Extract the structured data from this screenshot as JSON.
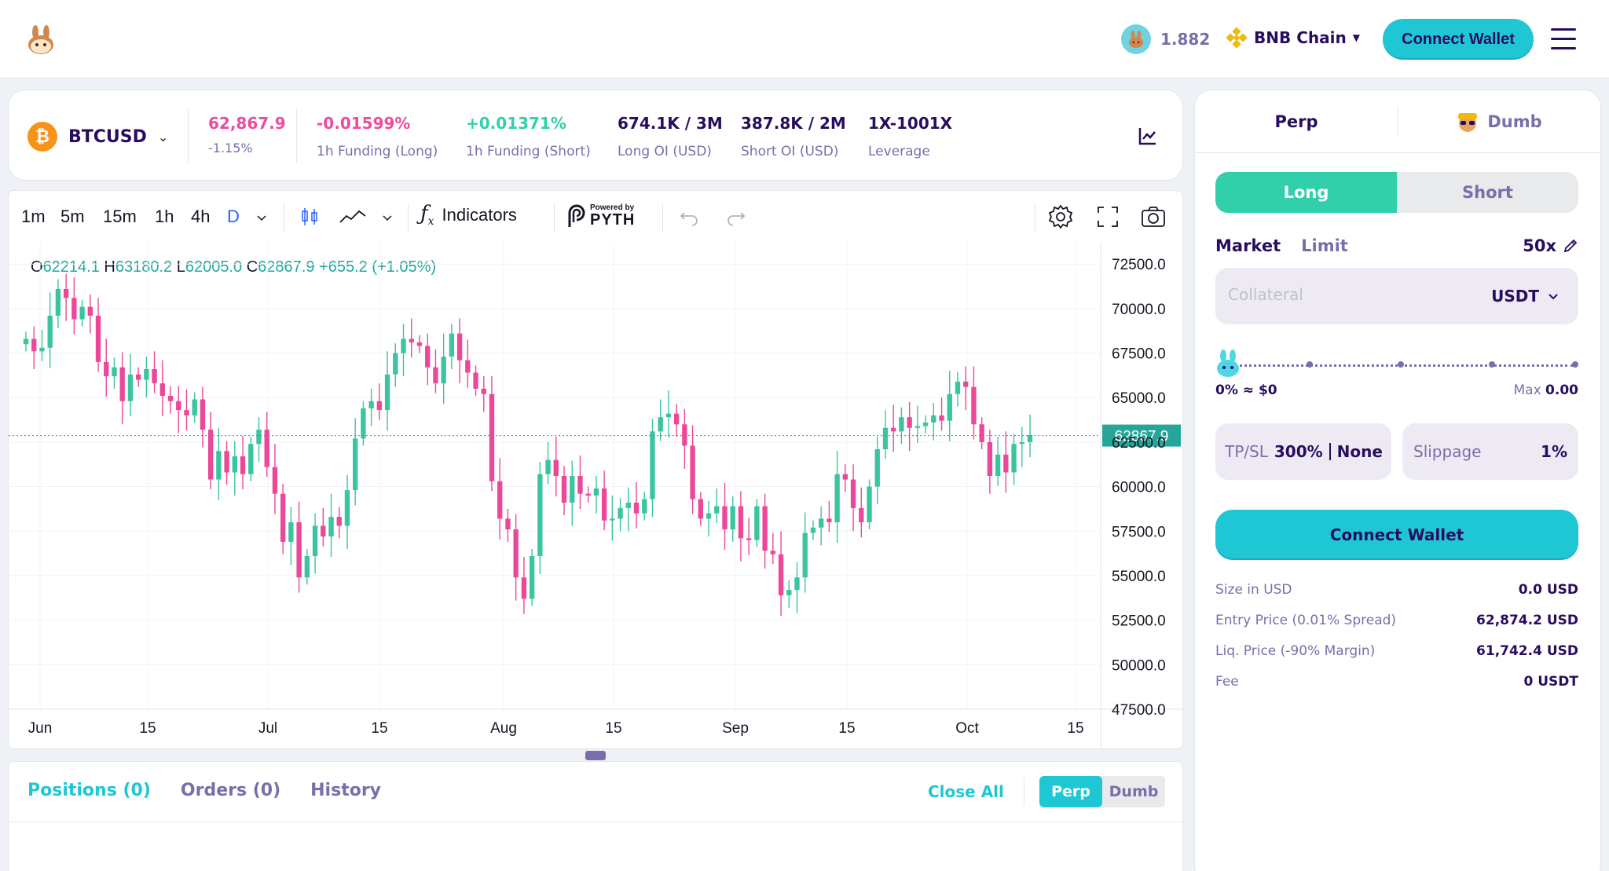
{
  "header": {
    "token_price": "1.882",
    "chain_name": "BNB Chain",
    "connect_label": "Connect Wallet"
  },
  "market": {
    "pair": "BTCUSD",
    "price": "62,867.9",
    "change": "-1.15%",
    "funding_long": "-0.01599%",
    "funding_long_label": "1h Funding (Long)",
    "funding_short": "+0.01371%",
    "funding_short_label": "1h Funding (Short)",
    "long_oi": "674.1K / 3M",
    "long_oi_label": "Long OI (USD)",
    "short_oi": "387.8K / 2M",
    "short_oi_label": "Short OI (USD)",
    "leverage": "1X-1001X",
    "leverage_label": "Leverage"
  },
  "toolbar": {
    "timeframes": [
      "1m",
      "5m",
      "15m",
      "1h",
      "4h",
      "D"
    ],
    "active_timeframe": "D",
    "indicators_label": "Indicators",
    "powered_by": "Powered by",
    "pyth": "PYTH"
  },
  "ohlc": {
    "o_label": "O",
    "o": "62214.1",
    "h_label": "H",
    "h": "63180.2",
    "l_label": "L",
    "l": "62005.0",
    "c_label": "C",
    "c": "62867.9",
    "chg": "+655.2 (+1.05%)"
  },
  "chart_data": {
    "type": "candlestick",
    "symbol": "BTCUSD",
    "interval": "D",
    "current_price": 62867.9,
    "ylim": [
      47500,
      73700
    ],
    "y_ticks": [
      "72500.0",
      "70000.0",
      "67500.0",
      "65000.0",
      "62500.0",
      "60000.0",
      "57500.0",
      "55000.0",
      "52500.0",
      "50000.0",
      "47500.0"
    ],
    "x_ticks": [
      "Jun",
      "15",
      "Jul",
      "15",
      "Aug",
      "15",
      "Sep",
      "15",
      "Oct",
      "15"
    ],
    "colors": {
      "up": "#26a69a",
      "down": "#ef5350",
      "up_bright": "#3bc4a0",
      "down_bright": "#ec4899"
    },
    "closes": [
      68300,
      67600,
      67800,
      69600,
      71100,
      70600,
      69400,
      70100,
      69600,
      67000,
      66200,
      66700,
      64800,
      66300,
      66000,
      66600,
      65800,
      65100,
      64800,
      64300,
      64000,
      64900,
      63200,
      60400,
      62000,
      60800,
      61700,
      60700,
      62400,
      63200,
      61100,
      59600,
      56900,
      58000,
      54900,
      56100,
      57800,
      57200,
      58300,
      57800,
      59800,
      62700,
      64400,
      64800,
      64300,
      66300,
      67500,
      68300,
      68100,
      67900,
      66700,
      65800,
      67300,
      68600,
      67100,
      66400,
      65500,
      65200,
      60300,
      58200,
      57600,
      54900,
      53700,
      56100,
      60700,
      61500,
      60600,
      59100,
      60600,
      59600,
      59500,
      59900,
      58100,
      58200,
      58800,
      59100,
      58500,
      59300,
      63100,
      63900,
      64100,
      63500,
      62300,
      59300,
      58200,
      58500,
      58900,
      57600,
      58900,
      57100,
      57000,
      58900,
      56400,
      56200,
      53900,
      54200,
      54900,
      57400,
      57700,
      58200,
      58000,
      60700,
      60400,
      58800,
      58000,
      60000,
      62100,
      63300,
      63100,
      63900,
      63300,
      63400,
      63600,
      64000,
      63700,
      65200,
      65900,
      65600,
      63500,
      62500,
      60600,
      61800,
      60800,
      62400,
      62500,
      62900
    ]
  },
  "positions": {
    "tabs": [
      "Positions (0)",
      "Orders (0)",
      "History"
    ],
    "close_all": "Close All",
    "seg": [
      "Perp",
      "Dumb"
    ]
  },
  "side": {
    "tabs": [
      "Perp",
      "Dumb"
    ],
    "long": "Long",
    "short": "Short",
    "market": "Market",
    "limit": "Limit",
    "leverage": "50x",
    "collateral_placeholder": "Collateral",
    "token": "USDT",
    "slider_left": "0% ≈ $0",
    "max_label": "Max",
    "max_value": "0.00",
    "tpsl_label": "TP/SL",
    "tp": "300%",
    "sl": "None",
    "slippage_label": "Slippage",
    "slippage": "1%",
    "connect": "Connect Wallet",
    "rows": [
      {
        "k": "Size in USD",
        "v": "0.0 USD"
      },
      {
        "k": "Entry Price (0.01% Spread)",
        "v": "62,874.2 USD"
      },
      {
        "k": "Liq. Price (-90% Margin)",
        "v": "61,742.4 USD"
      },
      {
        "k": "Fee",
        "v": "0 USDT"
      }
    ]
  }
}
